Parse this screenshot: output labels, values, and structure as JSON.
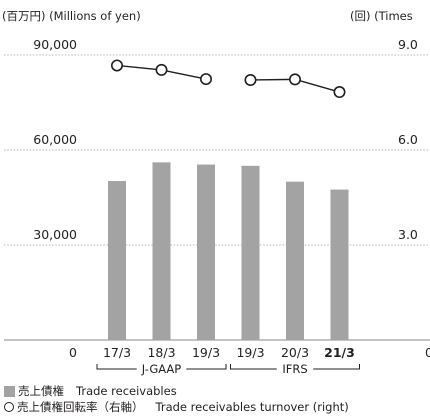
{
  "chart_data": {
    "type": "bar",
    "left_axis_unit": "(百万円) (Millions of yen)",
    "right_axis_unit": "(回) (Times",
    "left_ticks": [
      "0",
      "30,000",
      "60,000",
      "90,000"
    ],
    "left_tick_values": [
      0,
      30000,
      60000,
      90000
    ],
    "right_ticks": [
      "0",
      "3.0",
      "6.0",
      "9.0"
    ],
    "right_tick_values": [
      0,
      3.0,
      6.0,
      9.0
    ],
    "ylim": [
      0,
      90000
    ],
    "y2lim": [
      0,
      9.0
    ],
    "categories": [
      "17/3",
      "18/3",
      "19/3",
      "19/3",
      "20/3",
      "21/3"
    ],
    "bold_category_index": 5,
    "groups": [
      {
        "label": "J-GAAP",
        "from_index": 0,
        "to_index": 2
      },
      {
        "label": "IFRS",
        "from_index": 3,
        "to_index": 5
      }
    ],
    "series": [
      {
        "name_jp": "売上債権",
        "name_en": "Trade receivables",
        "type": "bar",
        "axis": "left",
        "color": "#a3a3a3",
        "values": [
          50200,
          56100,
          55400,
          55000,
          50000,
          47500
        ]
      },
      {
        "name_jp": "売上債権回転率（右軸）",
        "name_en": "Trade receivables turnover (right)",
        "type": "line",
        "axis": "right",
        "color": "#231f20",
        "line_segments": [
          [
            0,
            2
          ],
          [
            3,
            5
          ]
        ],
        "values": [
          8.67,
          8.53,
          8.24,
          8.21,
          8.23,
          7.83
        ]
      }
    ]
  }
}
